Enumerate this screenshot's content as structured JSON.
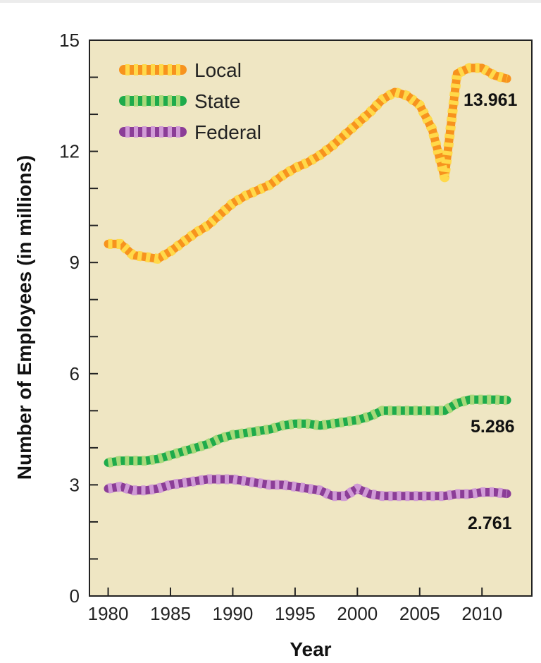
{
  "chart_data": {
    "type": "line",
    "xlabel": "Year",
    "ylabel": "Number of Employees (in millions)",
    "xlim": [
      1978.5,
      2014
    ],
    "ylim": [
      0,
      15
    ],
    "x_ticks": [
      1980,
      1985,
      1990,
      1995,
      2000,
      2005,
      2010
    ],
    "y_ticks": [
      0,
      3,
      6,
      9,
      12,
      15
    ],
    "y_minor_ticks": [
      1,
      2,
      4,
      5,
      7,
      8,
      10,
      11,
      13,
      14
    ],
    "legend_position": "top-left",
    "colors": {
      "plot_bg": "#efe6c3",
      "local": "#f7931e",
      "local_dash": "#ffd94a",
      "state": "#1eab4b",
      "state_dash": "#a8d97a",
      "federal": "#8b3d97",
      "federal_dash": "#d09ad6"
    },
    "x": [
      1980,
      1981,
      1982,
      1983,
      1984,
      1985,
      1986,
      1987,
      1988,
      1989,
      1990,
      1991,
      1992,
      1993,
      1994,
      1995,
      1996,
      1997,
      1998,
      1999,
      2000,
      2001,
      2002,
      2003,
      2004,
      2005,
      2006,
      2007,
      2008,
      2009,
      2010,
      2011,
      2012
    ],
    "series": [
      {
        "name": "Local",
        "values": [
          9.5,
          9.5,
          9.2,
          9.15,
          9.1,
          9.3,
          9.55,
          9.8,
          10.0,
          10.3,
          10.6,
          10.8,
          10.95,
          11.1,
          11.35,
          11.55,
          11.7,
          11.9,
          12.15,
          12.45,
          12.75,
          13.05,
          13.4,
          13.6,
          13.5,
          13.25,
          12.6,
          11.3,
          14.1,
          14.25,
          14.25,
          14.05,
          13.961
        ],
        "end_label": "13.961"
      },
      {
        "name": "State",
        "values": [
          3.6,
          3.65,
          3.65,
          3.65,
          3.7,
          3.8,
          3.9,
          4.0,
          4.1,
          4.25,
          4.35,
          4.4,
          4.45,
          4.5,
          4.6,
          4.65,
          4.65,
          4.6,
          4.65,
          4.7,
          4.75,
          4.85,
          5.0,
          5.0,
          5.0,
          5.0,
          5.0,
          5.0,
          5.2,
          5.3,
          5.3,
          5.3,
          5.286
        ],
        "end_label": "5.286"
      },
      {
        "name": "Federal",
        "values": [
          2.9,
          2.95,
          2.85,
          2.85,
          2.9,
          3.0,
          3.05,
          3.1,
          3.15,
          3.15,
          3.15,
          3.1,
          3.05,
          3.0,
          3.0,
          2.95,
          2.9,
          2.85,
          2.7,
          2.7,
          2.9,
          2.75,
          2.7,
          2.7,
          2.7,
          2.7,
          2.7,
          2.7,
          2.75,
          2.75,
          2.8,
          2.8,
          2.761
        ],
        "end_label": "2.761"
      }
    ]
  }
}
